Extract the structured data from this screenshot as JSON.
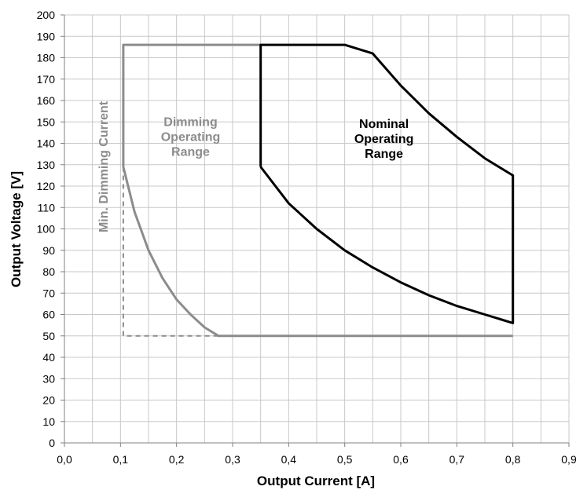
{
  "chart_data": {
    "type": "line",
    "xlabel": "Output Current [A]",
    "ylabel": "Output Voltage [V]",
    "xlim": [
      0,
      0.9
    ],
    "ylim": [
      0,
      200
    ],
    "x_ticks": [
      "0,0",
      "0,1",
      "0,2",
      "0,3",
      "0,4",
      "0,5",
      "0,6",
      "0,7",
      "0,8",
      "0,9"
    ],
    "y_ticks": [
      "0",
      "10",
      "20",
      "30",
      "40",
      "50",
      "60",
      "70",
      "80",
      "90",
      "100",
      "110",
      "120",
      "130",
      "140",
      "150",
      "160",
      "170",
      "180",
      "190",
      "200"
    ],
    "minor_x_grid_step": 0.05,
    "grid": true,
    "colors": {
      "gray": "#8c8c8c",
      "black": "#000000",
      "grid": "#c8c8c8"
    },
    "series": [
      {
        "color": "gray",
        "style": "solid",
        "points": [
          [
            0.105,
            129
          ],
          [
            0.105,
            186
          ],
          [
            0.35,
            186
          ]
        ]
      },
      {
        "color": "gray",
        "style": "solid",
        "points": [
          [
            0.105,
            129
          ],
          [
            0.125,
            108
          ],
          [
            0.15,
            90
          ],
          [
            0.175,
            77
          ],
          [
            0.2,
            67
          ],
          [
            0.225,
            60
          ],
          [
            0.25,
            54
          ],
          [
            0.275,
            50
          ],
          [
            0.8,
            50
          ]
        ]
      },
      {
        "color": "gray",
        "style": "dashed",
        "points": [
          [
            0.105,
            129
          ],
          [
            0.105,
            50
          ],
          [
            0.275,
            50
          ]
        ]
      },
      {
        "color": "black",
        "style": "solid",
        "points": [
          [
            0.35,
            129
          ],
          [
            0.35,
            186
          ],
          [
            0.5,
            186
          ],
          [
            0.55,
            182
          ],
          [
            0.6,
            167
          ],
          [
            0.65,
            154
          ],
          [
            0.7,
            143
          ],
          [
            0.75,
            133
          ],
          [
            0.8,
            125
          ],
          [
            0.8,
            56
          ],
          [
            0.75,
            60
          ],
          [
            0.7,
            64
          ],
          [
            0.65,
            69
          ],
          [
            0.6,
            75
          ],
          [
            0.55,
            82
          ],
          [
            0.5,
            90
          ],
          [
            0.45,
            100
          ],
          [
            0.4,
            112
          ],
          [
            0.35,
            129
          ]
        ]
      }
    ],
    "annotations": [
      {
        "lines": [
          "Dimming",
          "Operating",
          "Range"
        ],
        "color": "gray",
        "x": 0.225,
        "y": 143
      },
      {
        "lines": [
          "Nominal",
          "Operating",
          "Range"
        ],
        "color": "black",
        "x": 0.57,
        "y": 142
      },
      {
        "lines": [
          "Min. Dimming Current"
        ],
        "color": "gray",
        "x": 0.07,
        "y": 129,
        "rotate": -90
      }
    ]
  }
}
